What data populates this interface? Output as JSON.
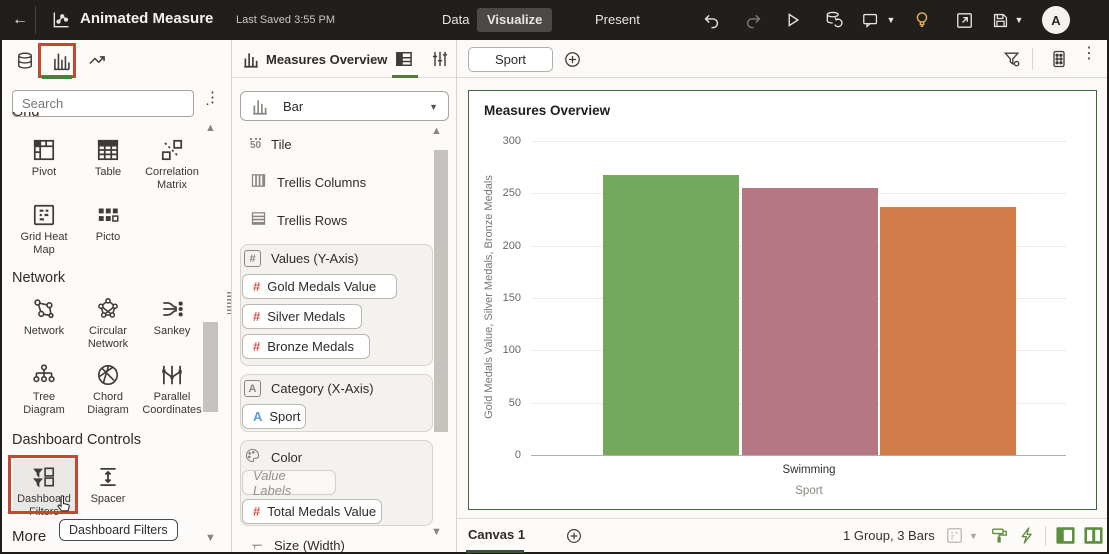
{
  "topbar": {
    "title": "Animated Measure",
    "last_saved": "Last Saved 3:55 PM",
    "tabs": [
      {
        "label": "Data"
      },
      {
        "label": "Visualize"
      },
      {
        "label": "Present"
      }
    ],
    "active_tab": "Visualize",
    "avatar_initial": "A",
    "icon_names": [
      "back-arrow",
      "app-logo",
      "undo",
      "redo",
      "play",
      "dataset",
      "comment",
      "insights-bulb",
      "open-window",
      "save",
      "avatar"
    ]
  },
  "left_panel": {
    "tab_icons": [
      "data-tab",
      "visualizations-tab",
      "analytics-tab"
    ],
    "active_tab": "visualizations-tab",
    "search_placeholder": "Search",
    "tooltip": "Dashboard Filters",
    "sections": [
      {
        "name": "Grid",
        "items": [
          {
            "label": "Pivot"
          },
          {
            "label": "Table"
          },
          {
            "label": "Correlation Matrix"
          },
          {
            "label": "Grid Heat Map"
          },
          {
            "label": "Picto"
          }
        ]
      },
      {
        "name": "Network",
        "items": [
          {
            "label": "Network"
          },
          {
            "label": "Circular Network"
          },
          {
            "label": "Sankey"
          },
          {
            "label": "Tree Diagram"
          },
          {
            "label": "Chord Diagram"
          },
          {
            "label": "Parallel Coordinates"
          }
        ]
      },
      {
        "name": "Dashboard Controls",
        "items": [
          {
            "label": "Dashboard Filters",
            "highlighted": true
          },
          {
            "label": "Spacer"
          }
        ]
      },
      {
        "name": "More",
        "items": []
      }
    ]
  },
  "grammar_panel": {
    "title": "Measures Overview",
    "chart_type": "Bar",
    "rows": [
      {
        "label": "Tile"
      },
      {
        "label": "Trellis Columns"
      },
      {
        "label": "Trellis Rows"
      }
    ],
    "values_zone": {
      "label": "Values (Y-Axis)",
      "pills": [
        "Gold Medals Value",
        "Silver Medals",
        "Bronze Medals"
      ]
    },
    "category_zone": {
      "label": "Category (X-Axis)",
      "pills": [
        "Sport"
      ]
    },
    "color_zone": {
      "label": "Color",
      "placeholder": "Value Labels",
      "pills": [
        "Total Medals Value"
      ]
    },
    "size_zone_clipped": "Size (Width)"
  },
  "canvas": {
    "filter_chip": "Sport",
    "chart_title": "Measures Overview",
    "footer": {
      "canvas_tab": "Canvas 1",
      "status": "1 Group, 3 Bars"
    }
  },
  "chart_data": {
    "type": "bar",
    "title": "Measures Overview",
    "categories": [
      "Swimming"
    ],
    "series": [
      {
        "name": "Gold Medals Value",
        "values": [
          268
        ],
        "color": "#74a85c"
      },
      {
        "name": "Silver Medals",
        "values": [
          255
        ],
        "color": "#b57783"
      },
      {
        "name": "Bronze Medals",
        "values": [
          237
        ],
        "color": "#d07b48"
      }
    ],
    "xlabel": "Sport",
    "ylabel": "Gold Medals Value, Silver Medals, Bronze Medals",
    "ylim": [
      0,
      300
    ],
    "yticks": [
      0,
      50,
      100,
      150,
      200,
      250,
      300
    ],
    "grid": true,
    "legend": "none"
  },
  "colors": {
    "highlight_red": "#c74634",
    "active_green": "#4f7d3c",
    "selection_border": "#44673a"
  }
}
